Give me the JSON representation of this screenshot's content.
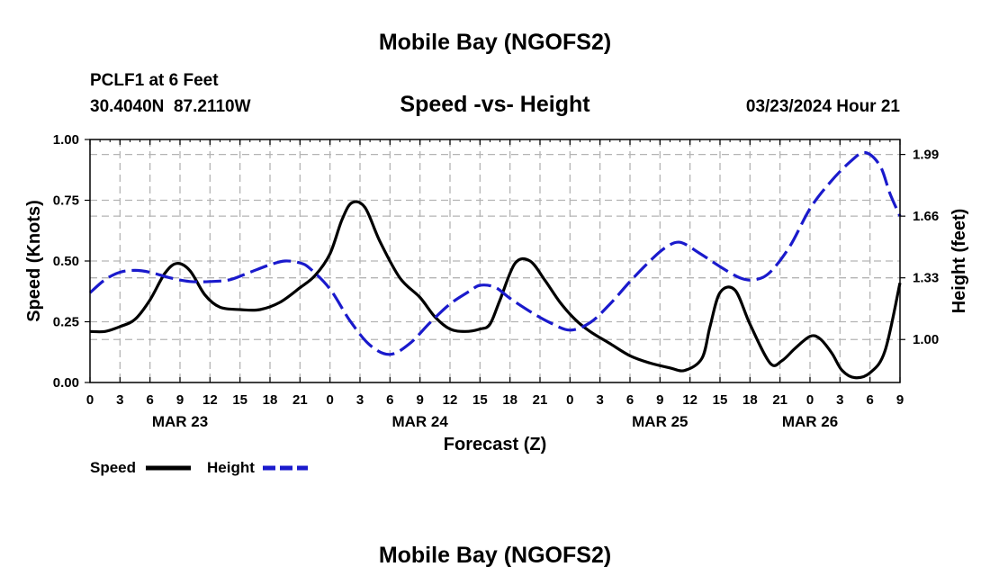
{
  "header": {
    "title": "Mobile Bay (NGOFS2)",
    "station": "PCLF1 at 6 Feet",
    "location": "30.4040N  87.2110W",
    "subtitle": "Speed -vs- Height",
    "timestamp": "03/23/2024 Hour 21"
  },
  "footer": {
    "title": "Mobile Bay (NGOFS2)"
  },
  "legend": {
    "speed_label": "Speed",
    "height_label": "Height"
  },
  "colors": {
    "speed": "#000000",
    "height": "#1a1acc",
    "grid": "#b4b4b4"
  },
  "chart_data": {
    "type": "line",
    "title": "Speed -vs- Height",
    "xlabel": "Forecast (Z)",
    "ylabel": "Speed (Knots)",
    "y2label": "Height (feet)",
    "xlim": [
      0,
      81
    ],
    "ylim": [
      0,
      1
    ],
    "y2lim": [
      0.77,
      2.07
    ],
    "x_ticks": [
      0,
      3,
      6,
      9,
      12,
      15,
      18,
      21,
      24,
      27,
      30,
      33,
      36,
      39,
      42,
      45,
      48,
      51,
      54,
      57,
      60,
      63,
      66,
      69,
      72,
      75,
      78,
      81
    ],
    "x_tick_labels": [
      "0",
      "3",
      "6",
      "9",
      "12",
      "15",
      "18",
      "21",
      "0",
      "3",
      "6",
      "9",
      "12",
      "15",
      "18",
      "21",
      "0",
      "3",
      "6",
      "9",
      "12",
      "15",
      "18",
      "21",
      "0",
      "3",
      "6",
      "9"
    ],
    "y_ticks": [
      0,
      0.25,
      0.5,
      0.75,
      1.0
    ],
    "y_tick_labels": [
      "0.00",
      "0.25",
      "0.50",
      "0.75",
      "1.00"
    ],
    "y2_ticks": [
      1.0,
      1.33,
      1.66,
      1.99
    ],
    "y2_tick_labels": [
      "1.00",
      "1.33",
      "1.66",
      "1.99"
    ],
    "date_labels": [
      {
        "x": 9,
        "label": "MAR 23"
      },
      {
        "x": 33,
        "label": "MAR 24"
      },
      {
        "x": 57,
        "label": "MAR 25"
      },
      {
        "x": 72,
        "label": "MAR 26"
      }
    ],
    "series": [
      {
        "name": "Speed",
        "axis": "left",
        "style": "solid",
        "x": [
          0,
          1.5,
          3,
          4.5,
          6,
          7.5,
          8.7,
          10,
          11.5,
          13,
          15,
          17,
          19,
          21,
          22.5,
          24,
          25.2,
          26.2,
          27.5,
          29,
          31,
          33,
          34.5,
          36,
          37.5,
          39,
          40,
          41,
          42.5,
          44,
          45.5,
          47,
          48.5,
          50,
          52,
          54,
          56,
          58,
          59.5,
          61.2,
          62,
          63,
          64.5,
          66,
          68,
          69.2,
          70.5,
          72,
          73,
          74.2,
          75.2,
          76.5,
          78,
          79.5,
          81
        ],
        "values": [
          0.21,
          0.21,
          0.23,
          0.26,
          0.34,
          0.45,
          0.49,
          0.46,
          0.36,
          0.31,
          0.3,
          0.3,
          0.33,
          0.39,
          0.44,
          0.53,
          0.67,
          0.74,
          0.72,
          0.58,
          0.43,
          0.35,
          0.27,
          0.22,
          0.21,
          0.22,
          0.24,
          0.34,
          0.49,
          0.5,
          0.42,
          0.33,
          0.26,
          0.21,
          0.16,
          0.11,
          0.08,
          0.06,
          0.05,
          0.1,
          0.23,
          0.37,
          0.38,
          0.24,
          0.08,
          0.09,
          0.14,
          0.19,
          0.18,
          0.12,
          0.05,
          0.02,
          0.04,
          0.13,
          0.41
        ]
      },
      {
        "name": "Height",
        "axis": "right",
        "style": "dashed",
        "x": [
          0,
          1.5,
          3,
          4.5,
          6,
          8,
          10,
          12,
          14,
          16,
          18,
          19.5,
          21,
          22,
          24,
          26,
          28,
          30,
          32,
          34,
          36,
          38,
          39,
          40.5,
          42,
          44,
          46,
          48,
          50,
          52,
          54,
          56,
          57.5,
          59,
          61,
          63,
          65,
          66.5,
          68,
          70,
          72,
          74,
          76,
          77.5,
          79,
          80,
          81
        ],
        "values": [
          1.25,
          1.32,
          1.36,
          1.37,
          1.36,
          1.33,
          1.31,
          1.31,
          1.32,
          1.36,
          1.4,
          1.42,
          1.41,
          1.38,
          1.27,
          1.1,
          0.97,
          0.92,
          0.98,
          1.09,
          1.19,
          1.26,
          1.29,
          1.28,
          1.22,
          1.15,
          1.09,
          1.05,
          1.09,
          1.19,
          1.31,
          1.42,
          1.49,
          1.52,
          1.46,
          1.39,
          1.33,
          1.32,
          1.36,
          1.5,
          1.7,
          1.84,
          1.95,
          2.0,
          1.93,
          1.78,
          1.66
        ]
      }
    ]
  }
}
